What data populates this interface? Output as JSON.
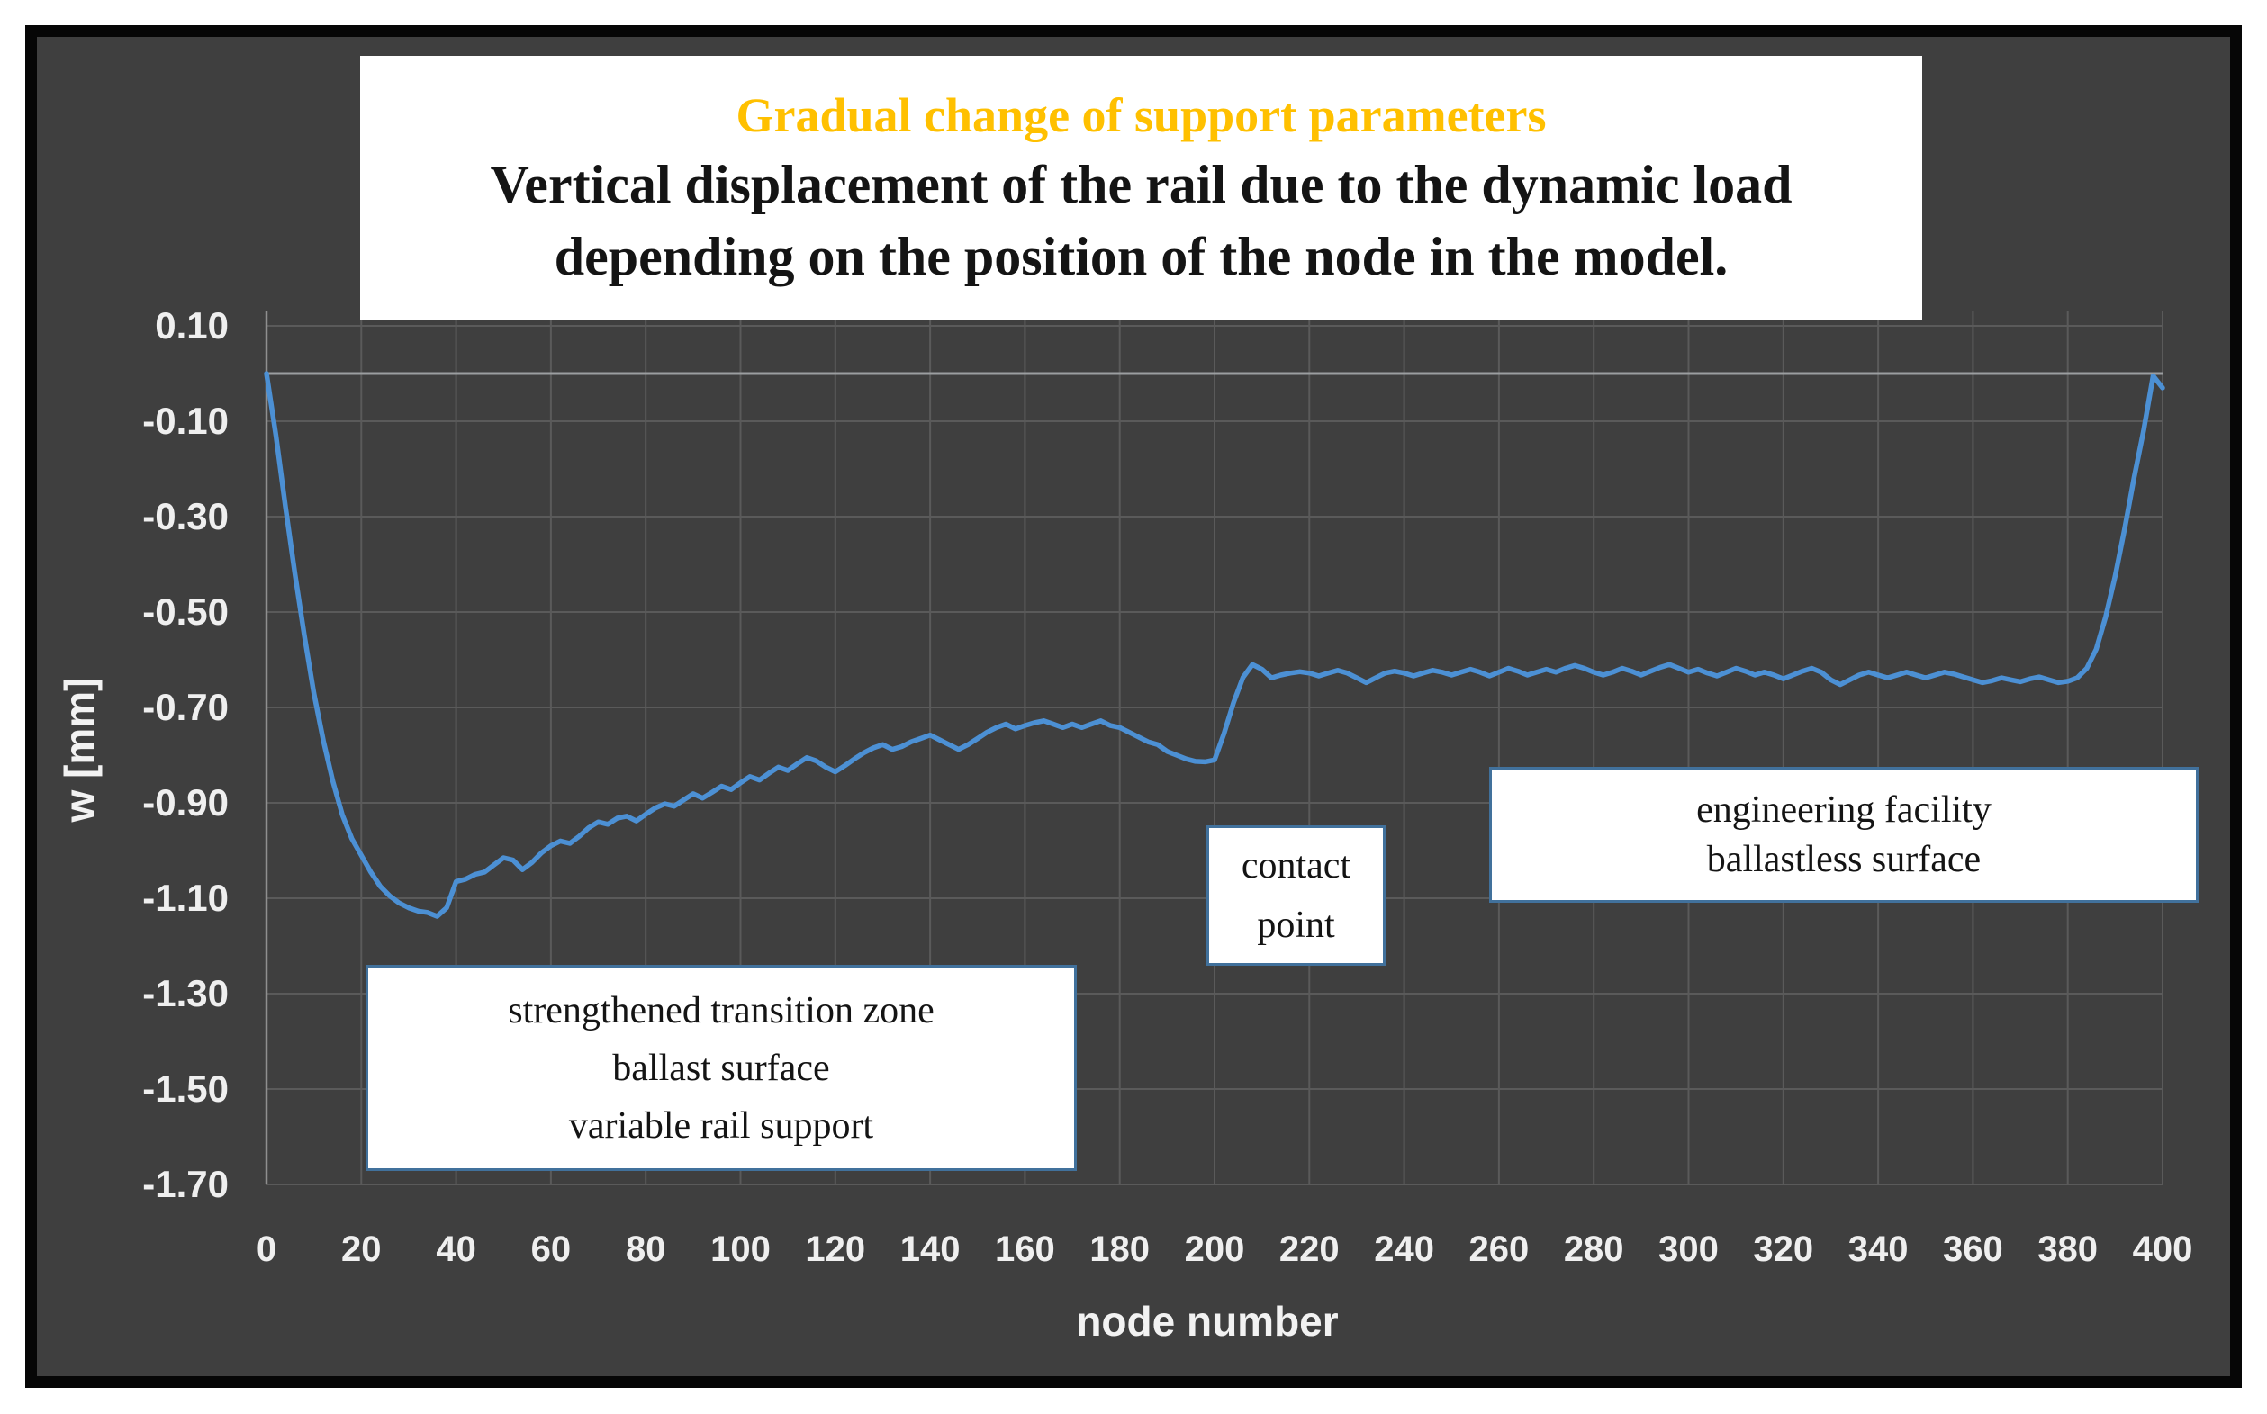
{
  "colors": {
    "page_background": "#ffffff",
    "frame_border": "#060606",
    "chart_background": "#3F3F3F",
    "gridline": "#5A5A5A",
    "zero_line": "#9B9EA0",
    "axis_line": "#8F8F8F",
    "tick_text": "#EFEFEF",
    "curve": "#4C90D4",
    "annotation_border": "#41719C",
    "title_accent": "#FFC000",
    "title_text": "#141414"
  },
  "title_box": {
    "heading": "Gradual change of support parameters",
    "line1": "Vertical displacement of the rail due to the dynamic load",
    "line2": "depending on the position of the node in the model."
  },
  "y_axis": {
    "title": "w [mm]"
  },
  "x_axis": {
    "title": "node number"
  },
  "annotations": {
    "transition_zone": {
      "lines": [
        "strengthened transition zone",
        "ballast surface",
        "variable rail support"
      ]
    },
    "contact_point": {
      "lines": [
        "contact",
        "point"
      ]
    },
    "engineering_facility": {
      "lines": [
        "engineering facility",
        "ballastless surface"
      ]
    }
  },
  "chart_data": {
    "type": "line",
    "title": "Gradual change of support parameters",
    "subtitle": "Vertical displacement of the rail due to the dynamic load depending on the position of the node in the model.",
    "xlabel": "node number",
    "ylabel": "w [mm]",
    "xlim": [
      0,
      400
    ],
    "ylim": [
      -1.7,
      0.1
    ],
    "x_tick_interval": 20,
    "y_tick_interval": 0.2,
    "x_ticks": [
      0,
      20,
      40,
      60,
      80,
      100,
      120,
      140,
      160,
      180,
      200,
      220,
      240,
      260,
      280,
      300,
      320,
      340,
      360,
      380,
      400
    ],
    "y_ticks": [
      "0.10",
      "-0.10",
      "-0.30",
      "-0.50",
      "-0.70",
      "-0.90",
      "-1.10",
      "-1.30",
      "-1.50",
      "-1.70"
    ],
    "grid": "on",
    "zero_line": true,
    "legend": "none",
    "annotations": [
      "strengthened transition zone / ballast surface / variable rail support",
      "contact point",
      "engineering facility / ballastless surface"
    ],
    "series": [
      {
        "name": "vertical displacement w",
        "x_start": 0,
        "x_step": 2,
        "values": [
          0.0,
          -0.13,
          -0.28,
          -0.42,
          -0.55,
          -0.67,
          -0.77,
          -0.855,
          -0.925,
          -0.975,
          -1.01,
          -1.045,
          -1.075,
          -1.095,
          -1.11,
          -1.12,
          -1.127,
          -1.13,
          -1.138,
          -1.12,
          -1.065,
          -1.06,
          -1.05,
          -1.045,
          -1.03,
          -1.015,
          -1.02,
          -1.04,
          -1.025,
          -1.005,
          -0.99,
          -0.98,
          -0.985,
          -0.97,
          -0.952,
          -0.94,
          -0.945,
          -0.932,
          -0.928,
          -0.938,
          -0.924,
          -0.911,
          -0.902,
          -0.907,
          -0.894,
          -0.881,
          -0.89,
          -0.878,
          -0.865,
          -0.872,
          -0.858,
          -0.845,
          -0.852,
          -0.838,
          -0.825,
          -0.832,
          -0.818,
          -0.805,
          -0.812,
          -0.825,
          -0.835,
          -0.822,
          -0.808,
          -0.795,
          -0.785,
          -0.778,
          -0.788,
          -0.782,
          -0.772,
          -0.765,
          -0.758,
          -0.768,
          -0.778,
          -0.788,
          -0.778,
          -0.765,
          -0.752,
          -0.742,
          -0.735,
          -0.745,
          -0.738,
          -0.732,
          -0.728,
          -0.735,
          -0.742,
          -0.735,
          -0.742,
          -0.735,
          -0.728,
          -0.738,
          -0.742,
          -0.752,
          -0.762,
          -0.772,
          -0.778,
          -0.792,
          -0.8,
          -0.808,
          -0.813,
          -0.814,
          -0.81,
          -0.755,
          -0.69,
          -0.637,
          -0.61,
          -0.62,
          -0.638,
          -0.632,
          -0.628,
          -0.625,
          -0.628,
          -0.634,
          -0.628,
          -0.622,
          -0.628,
          -0.638,
          -0.648,
          -0.638,
          -0.628,
          -0.624,
          -0.628,
          -0.634,
          -0.628,
          -0.622,
          -0.626,
          -0.632,
          -0.626,
          -0.62,
          -0.626,
          -0.634,
          -0.626,
          -0.618,
          -0.624,
          -0.632,
          -0.626,
          -0.62,
          -0.626,
          -0.618,
          -0.612,
          -0.618,
          -0.626,
          -0.632,
          -0.626,
          -0.618,
          -0.624,
          -0.632,
          -0.624,
          -0.616,
          -0.61,
          -0.618,
          -0.626,
          -0.62,
          -0.628,
          -0.634,
          -0.626,
          -0.618,
          -0.624,
          -0.632,
          -0.626,
          -0.632,
          -0.64,
          -0.632,
          -0.624,
          -0.618,
          -0.626,
          -0.642,
          -0.652,
          -0.642,
          -0.632,
          -0.626,
          -0.632,
          -0.638,
          -0.632,
          -0.626,
          -0.632,
          -0.638,
          -0.632,
          -0.626,
          -0.63,
          -0.636,
          -0.642,
          -0.648,
          -0.644,
          -0.638,
          -0.642,
          -0.646,
          -0.64,
          -0.636,
          -0.642,
          -0.648,
          -0.645,
          -0.638,
          -0.618,
          -0.578,
          -0.51,
          -0.425,
          -0.325,
          -0.218,
          -0.12,
          -0.005,
          -0.03
        ]
      }
    ]
  }
}
